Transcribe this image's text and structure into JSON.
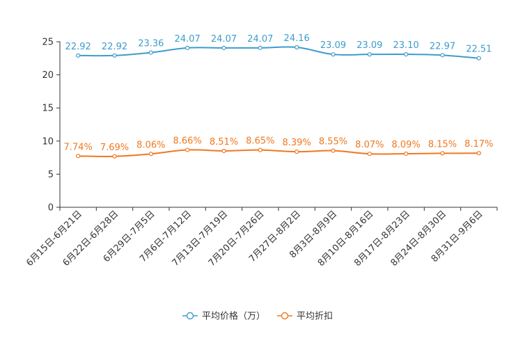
{
  "chart_data": {
    "type": "line",
    "title": "",
    "xlabel": "",
    "ylabel": "",
    "ylim": [
      0,
      25
    ],
    "yticks": [
      0,
      5,
      10,
      15,
      20,
      25
    ],
    "grid": false,
    "legend_position": "bottom-center",
    "categories": [
      "6月15日-6月21日",
      "6月22日-6月28日",
      "6月29日-7月5日",
      "7月6日-7月12日",
      "7月13日-7月19日",
      "7月20日-7月26日",
      "7月27日-8月2日",
      "8月3日-8月9日",
      "8月10日-8月16日",
      "8月17日-8月23日",
      "8月24日-8月30日",
      "8月31日-9月6日"
    ],
    "series": [
      {
        "name": "平均价格（万）",
        "color": "#3d9ccc",
        "values": [
          22.92,
          22.92,
          23.36,
          24.07,
          24.07,
          24.07,
          24.16,
          23.09,
          23.09,
          23.1,
          22.97,
          22.51
        ],
        "labels": [
          "22.92",
          "22.92",
          "23.36",
          "24.07",
          "24.07",
          "24.07",
          "24.16",
          "23.09",
          "23.09",
          "23.10",
          "22.97",
          "22.51"
        ]
      },
      {
        "name": "平均折扣",
        "color": "#f0781e",
        "values": [
          7.74,
          7.69,
          8.06,
          8.66,
          8.51,
          8.65,
          8.39,
          8.55,
          8.07,
          8.09,
          8.15,
          8.17
        ],
        "labels": [
          "7.74%",
          "7.69%",
          "8.06%",
          "8.66%",
          "8.51%",
          "8.65%",
          "8.39%",
          "8.55%",
          "8.07%",
          "8.09%",
          "8.15%",
          "8.17%"
        ]
      }
    ]
  }
}
